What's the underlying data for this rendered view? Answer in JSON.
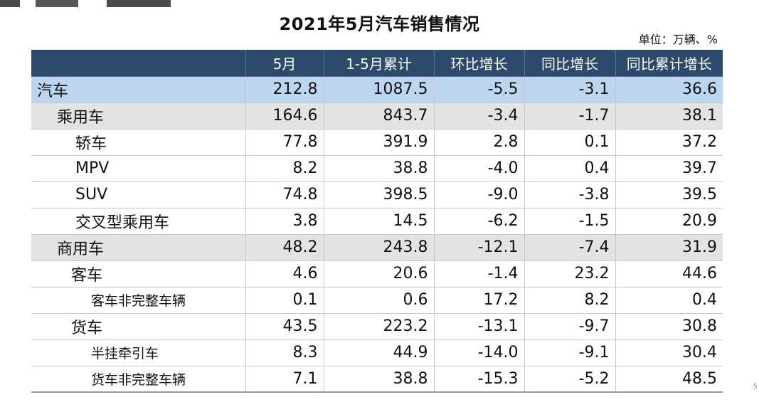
{
  "title": "2021年5月汽车销售情况",
  "unit": "单位：万辆、%",
  "edge_mark": "5",
  "table": {
    "headers": [
      "",
      "5月",
      "1-5月累计",
      "环比增长",
      "同比增长",
      "同比累计增长"
    ],
    "rows": [
      {
        "name": "汽车",
        "level": 0,
        "values": [
          "212.8",
          "1087.5",
          "-5.5",
          "-3.1",
          "36.6"
        ]
      },
      {
        "name": "乘用车",
        "level": 1,
        "values": [
          "164.6",
          "843.7",
          "-3.4",
          "-1.7",
          "38.1"
        ]
      },
      {
        "name": "轿车",
        "level": 2,
        "values": [
          "77.8",
          "391.9",
          "2.8",
          "0.1",
          "37.2"
        ]
      },
      {
        "name": "MPV",
        "level": 2,
        "values": [
          "8.2",
          "38.8",
          "-4.0",
          "0.4",
          "39.7"
        ]
      },
      {
        "name": "SUV",
        "level": 2,
        "values": [
          "74.8",
          "398.5",
          "-9.0",
          "-3.8",
          "39.5"
        ]
      },
      {
        "name": "交叉型乘用车",
        "level": 2,
        "values": [
          "3.8",
          "14.5",
          "-6.2",
          "-1.5",
          "20.9"
        ]
      },
      {
        "name": "商用车",
        "level": 1,
        "values": [
          "48.2",
          "243.8",
          "-12.1",
          "-7.4",
          "31.9"
        ]
      },
      {
        "name": "客车",
        "level": 2,
        "values": [
          "4.6",
          "20.6",
          "-1.4",
          "23.2",
          "44.6"
        ]
      },
      {
        "name": "客车非完整车辆",
        "level": 3,
        "values": [
          "0.1",
          "0.6",
          "17.2",
          "8.2",
          "0.4"
        ]
      },
      {
        "name": "货车",
        "level": 2,
        "values": [
          "43.5",
          "223.2",
          "-13.1",
          "-9.7",
          "30.8"
        ]
      },
      {
        "name": "半挂牵引车",
        "level": 3,
        "values": [
          "8.3",
          "44.9",
          "-14.0",
          "-9.1",
          "30.4"
        ]
      },
      {
        "name": "货车非完整车辆",
        "level": 3,
        "values": [
          "7.1",
          "38.8",
          "-15.3",
          "-5.2",
          "48.5"
        ]
      }
    ]
  }
}
